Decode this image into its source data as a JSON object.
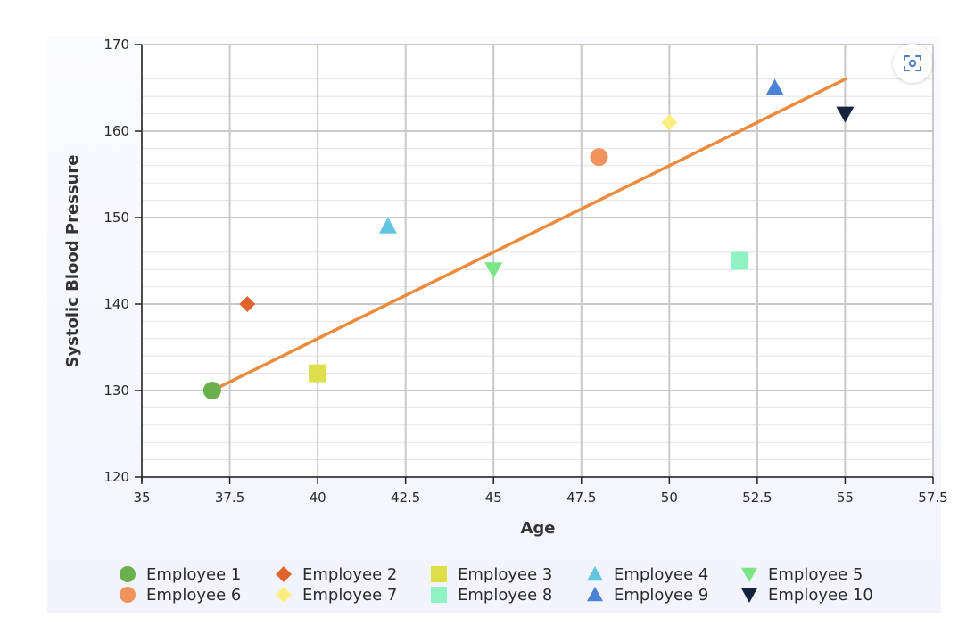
{
  "chart_data": {
    "type": "scatter",
    "title": "",
    "xlabel": "Age",
    "ylabel": "Systolic Blood Pressure",
    "xlim": [
      35,
      57.5
    ],
    "ylim": [
      120,
      170
    ],
    "x_ticks": [
      "35",
      "37.5",
      "40",
      "42.5",
      "45",
      "47.5",
      "50",
      "52.5",
      "55",
      "57.5"
    ],
    "y_ticks": [
      "120",
      "130",
      "140",
      "150",
      "160",
      "170"
    ],
    "grid": true,
    "legend_position": "bottom",
    "series": [
      {
        "name": "Employee 1",
        "x": 37,
        "y": 130,
        "marker": "circle",
        "color": "#6ab04c"
      },
      {
        "name": "Employee 2",
        "x": 38,
        "y": 140,
        "marker": "diamond",
        "color": "#e0642f"
      },
      {
        "name": "Employee 3",
        "x": 40,
        "y": 132,
        "marker": "square",
        "color": "#dede4a"
      },
      {
        "name": "Employee 4",
        "x": 42,
        "y": 149,
        "marker": "triangle-up",
        "color": "#62c6e0"
      },
      {
        "name": "Employee 5",
        "x": 45,
        "y": 144,
        "marker": "triangle-down",
        "color": "#7ce584"
      },
      {
        "name": "Employee 6",
        "x": 48,
        "y": 157,
        "marker": "circle",
        "color": "#f0935c"
      },
      {
        "name": "Employee 7",
        "x": 50,
        "y": 161,
        "marker": "diamond",
        "color": "#faef7e"
      },
      {
        "name": "Employee 8",
        "x": 52,
        "y": 145,
        "marker": "square",
        "color": "#8ef2c3"
      },
      {
        "name": "Employee 9",
        "x": 53,
        "y": 165,
        "marker": "triangle-up",
        "color": "#4a82d6"
      },
      {
        "name": "Employee 10",
        "x": 55,
        "y": 162,
        "marker": "triangle-down",
        "color": "#16233f"
      }
    ],
    "trendline": {
      "x": [
        37,
        55
      ],
      "y": [
        130,
        166
      ],
      "color": "#ee8a3c"
    }
  },
  "controls": {
    "screenshot_icon": "screenshot-capture-icon"
  }
}
